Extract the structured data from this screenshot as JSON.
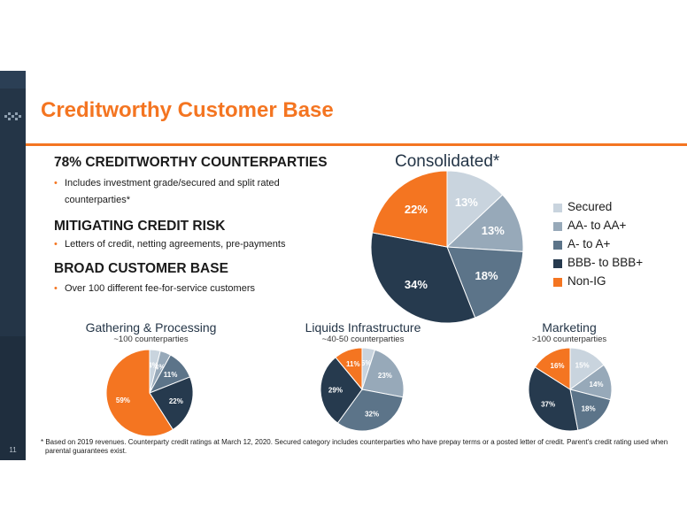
{
  "slide": {
    "page_number": "11",
    "title": "Creditworthy Customer Base"
  },
  "sections": [
    {
      "heading": "78% CREDITWORTHY COUNTERPARTIES",
      "bullet_line1": "Includes investment grade/secured and split rated",
      "bullet_line2": "counterparties*"
    },
    {
      "heading": "MITIGATING CREDIT RISK",
      "bullet_line1": "Letters of credit, netting agreements, pre-payments"
    },
    {
      "heading": "BROAD CUSTOMER BASE",
      "bullet_line1": "Over 100 different fee-for-service customers"
    }
  ],
  "footnote": {
    "line1": "* Based on 2019 revenues. Counterparty credit ratings at March 12, 2020. Secured category includes counterparties who have prepay terms or a posted letter of credit. Parent's credit rating used when",
    "line2": "parental guarantees exist."
  },
  "colors": {
    "Secured": "#c9d4de",
    "AA- to AA+": "#97a9b9",
    "A- to A+": "#5c7489",
    "BBB- to BBB+": "#263a4e",
    "Non-IG": "#f47521",
    "accent": "#f47521"
  },
  "legend": [
    "Secured",
    "AA- to AA+",
    "A- to A+",
    "BBB- to BBB+",
    "Non-IG"
  ],
  "chart_data": [
    {
      "type": "pie",
      "title": "Consolidated*",
      "categories": [
        "Secured",
        "AA- to AA+",
        "A- to A+",
        "BBB- to BBB+",
        "Non-IG"
      ],
      "values": [
        13,
        13,
        18,
        34,
        22
      ],
      "labels": [
        "13%",
        "13%",
        "18%",
        "34%",
        "22%"
      ]
    },
    {
      "type": "pie",
      "title": "Gathering & Processing",
      "subtitle": "~100 counterparties",
      "categories": [
        "Secured",
        "AA- to AA+",
        "A- to A+",
        "BBB- to BBB+",
        "Non-IG"
      ],
      "values": [
        4,
        4,
        11,
        22,
        59
      ],
      "labels": [
        "4%",
        "4%",
        "11%",
        "22%",
        "59%"
      ]
    },
    {
      "type": "pie",
      "title": "Liquids Infrastructure",
      "subtitle": "~40-50 counterparties",
      "categories": [
        "Secured",
        "AA- to AA+",
        "A- to A+",
        "BBB- to BBB+",
        "Non-IG"
      ],
      "values": [
        5,
        23,
        32,
        29,
        11
      ],
      "labels": [
        "5%",
        "23%",
        "32%",
        "29%",
        "11%"
      ]
    },
    {
      "type": "pie",
      "title": "Marketing",
      "subtitle": ">100 counterparties",
      "categories": [
        "Secured",
        "AA- to AA+",
        "A- to A+",
        "BBB- to BBB+",
        "Non-IG"
      ],
      "values": [
        15,
        14,
        18,
        37,
        16
      ],
      "labels": [
        "15%",
        "14%",
        "18%",
        "37%",
        "16%"
      ]
    }
  ]
}
